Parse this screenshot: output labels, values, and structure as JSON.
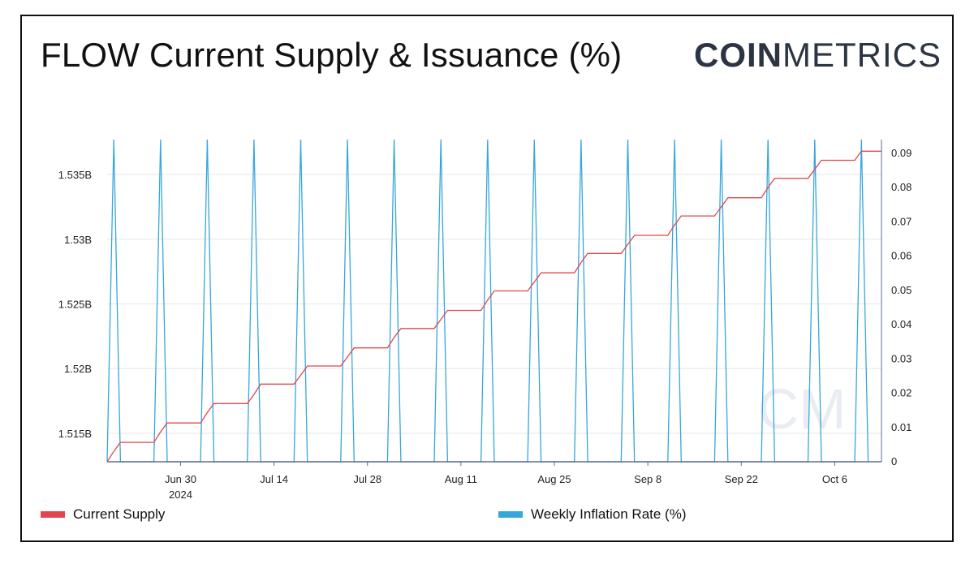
{
  "title": "FLOW Current Supply & Issuance (%)",
  "brand": {
    "bold": "COIN",
    "light": "METRICS"
  },
  "watermark": "CM",
  "colors": {
    "supply": "#e0474c",
    "inflation": "#36a6dc",
    "grid": "#e6e6e6",
    "axis": "#5b6d8a"
  },
  "legend": [
    {
      "label": "Current Supply",
      "color": "#e0474c"
    },
    {
      "label": "Weekly Inflation Rate (%)",
      "color": "#36a6dc"
    }
  ],
  "chart_data": {
    "type": "line",
    "title": "FLOW Current Supply & Issuance (%)",
    "x_tick_labels": [
      {
        "label": "Jun 30",
        "sublabel": "2024",
        "date": "2024-06-30"
      },
      {
        "label": "Jul 14",
        "sublabel": "",
        "date": "2024-07-14"
      },
      {
        "label": "Jul 28",
        "sublabel": "",
        "date": "2024-07-28"
      },
      {
        "label": "Aug 11",
        "sublabel": "",
        "date": "2024-08-11"
      },
      {
        "label": "Aug 25",
        "sublabel": "",
        "date": "2024-08-25"
      },
      {
        "label": "Sep 8",
        "sublabel": "",
        "date": "2024-09-08"
      },
      {
        "label": "Sep 22",
        "sublabel": "",
        "date": "2024-09-22"
      },
      {
        "label": "Oct 6",
        "sublabel": "",
        "date": "2024-10-06"
      }
    ],
    "xlim": [
      "2024-06-19",
      "2024-10-13"
    ],
    "y_left": {
      "ylim": [
        1.5128,
        1.5377
      ],
      "ticks": [
        1.515,
        1.52,
        1.525,
        1.53,
        1.535
      ],
      "tick_labels": [
        "1.515B",
        "1.52B",
        "1.525B",
        "1.53B",
        "1.535B"
      ],
      "unit": "billion"
    },
    "y_right": {
      "ylim": [
        0,
        0.094
      ],
      "ticks": [
        0,
        0.01,
        0.02,
        0.03,
        0.04,
        0.05,
        0.06,
        0.07,
        0.08,
        0.09
      ],
      "tick_labels": [
        "0",
        "0.01",
        "0.02",
        "0.03",
        "0.04",
        "0.05",
        "0.06",
        "0.07",
        "0.08",
        "0.09"
      ]
    },
    "grid": true,
    "series": [
      {
        "name": "Current Supply",
        "axis": "left",
        "x": [
          "2024-06-19",
          "2024-06-20",
          "2024-06-21",
          "2024-06-26",
          "2024-06-27",
          "2024-06-28",
          "2024-07-03",
          "2024-07-04",
          "2024-07-05",
          "2024-07-10",
          "2024-07-11",
          "2024-07-12",
          "2024-07-17",
          "2024-07-18",
          "2024-07-19",
          "2024-07-24",
          "2024-07-25",
          "2024-07-26",
          "2024-07-31",
          "2024-08-01",
          "2024-08-02",
          "2024-08-07",
          "2024-08-08",
          "2024-08-09",
          "2024-08-14",
          "2024-08-15",
          "2024-08-16",
          "2024-08-21",
          "2024-08-22",
          "2024-08-23",
          "2024-08-28",
          "2024-08-29",
          "2024-08-30",
          "2024-09-04",
          "2024-09-05",
          "2024-09-06",
          "2024-09-11",
          "2024-09-12",
          "2024-09-13",
          "2024-09-18",
          "2024-09-19",
          "2024-09-20",
          "2024-09-25",
          "2024-09-26",
          "2024-09-27",
          "2024-10-02",
          "2024-10-03",
          "2024-10-04",
          "2024-10-09",
          "2024-10-10",
          "2024-10-13"
        ],
        "values": [
          1.5128,
          1.5136,
          1.5143,
          1.5143,
          1.5151,
          1.5158,
          1.5158,
          1.5166,
          1.5173,
          1.5173,
          1.518,
          1.5188,
          1.5188,
          1.5195,
          1.5202,
          1.5202,
          1.5209,
          1.5216,
          1.5216,
          1.5224,
          1.5231,
          1.5231,
          1.5238,
          1.5245,
          1.5245,
          1.5253,
          1.526,
          1.526,
          1.5267,
          1.5274,
          1.5274,
          1.5282,
          1.5289,
          1.5289,
          1.5296,
          1.5303,
          1.5303,
          1.5311,
          1.5318,
          1.5318,
          1.5325,
          1.5332,
          1.5332,
          1.534,
          1.5347,
          1.5347,
          1.5354,
          1.5361,
          1.5361,
          1.5368,
          1.5368
        ]
      },
      {
        "name": "Weekly Inflation Rate (%)",
        "axis": "right",
        "x": [
          "2024-06-19",
          "2024-06-20",
          "2024-06-21",
          "2024-06-26",
          "2024-06-27",
          "2024-06-28",
          "2024-07-03",
          "2024-07-04",
          "2024-07-05",
          "2024-07-10",
          "2024-07-11",
          "2024-07-12",
          "2024-07-17",
          "2024-07-18",
          "2024-07-19",
          "2024-07-24",
          "2024-07-25",
          "2024-07-26",
          "2024-07-31",
          "2024-08-01",
          "2024-08-02",
          "2024-08-07",
          "2024-08-08",
          "2024-08-09",
          "2024-08-14",
          "2024-08-15",
          "2024-08-16",
          "2024-08-21",
          "2024-08-22",
          "2024-08-23",
          "2024-08-28",
          "2024-08-29",
          "2024-08-30",
          "2024-09-04",
          "2024-09-05",
          "2024-09-06",
          "2024-09-11",
          "2024-09-12",
          "2024-09-13",
          "2024-09-18",
          "2024-09-19",
          "2024-09-20",
          "2024-09-25",
          "2024-09-26",
          "2024-09-27",
          "2024-10-02",
          "2024-10-03",
          "2024-10-04",
          "2024-10-09",
          "2024-10-10",
          "2024-10-11"
        ],
        "values": [
          0,
          0.094,
          0,
          0,
          0.094,
          0,
          0,
          0.094,
          0,
          0,
          0.094,
          0,
          0,
          0.094,
          0,
          0,
          0.094,
          0,
          0,
          0.094,
          0,
          0,
          0.094,
          0,
          0,
          0.094,
          0,
          0,
          0.094,
          0,
          0,
          0.094,
          0,
          0,
          0.094,
          0,
          0,
          0.094,
          0,
          0,
          0.094,
          0,
          0,
          0.094,
          0,
          0,
          0.094,
          0,
          0,
          0.094,
          0
        ]
      }
    ]
  }
}
